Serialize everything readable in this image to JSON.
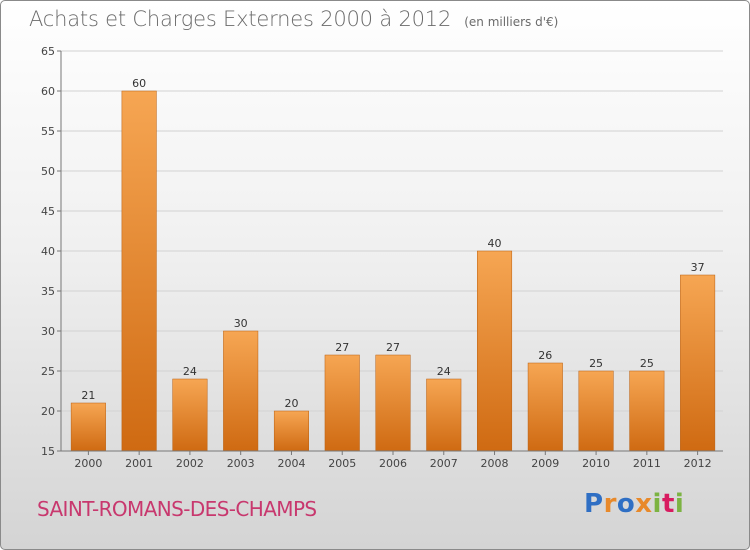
{
  "title": "Achats et Charges Externes 2000 à 2012",
  "unit_label": "(en milliers d'€)",
  "place": "SAINT-ROMANS-DES-CHAMPS",
  "brand": {
    "letters": [
      "P",
      "r",
      "o",
      "x",
      "i",
      "t",
      "i"
    ],
    "colors": [
      "#2f6fc4",
      "#e8892a",
      "#2f6fc4",
      "#e8892a",
      "#7cb342",
      "#d81b60",
      "#7cb342"
    ]
  },
  "colors": {
    "bar_top": "#f6a653",
    "bar_bottom": "#cf6a12",
    "place_text": "#c8386e"
  },
  "chart_data": {
    "type": "bar",
    "categories": [
      "2000",
      "2001",
      "2002",
      "2003",
      "2004",
      "2005",
      "2006",
      "2007",
      "2008",
      "2009",
      "2010",
      "2011",
      "2012"
    ],
    "values": [
      21,
      60,
      24,
      30,
      20,
      27,
      27,
      24,
      40,
      26,
      25,
      25,
      37
    ],
    "ylim": [
      15,
      65
    ],
    "yticks": [
      15,
      20,
      25,
      30,
      35,
      40,
      45,
      50,
      55,
      60,
      65
    ],
    "grid": "horizontal",
    "data_labels": true
  }
}
